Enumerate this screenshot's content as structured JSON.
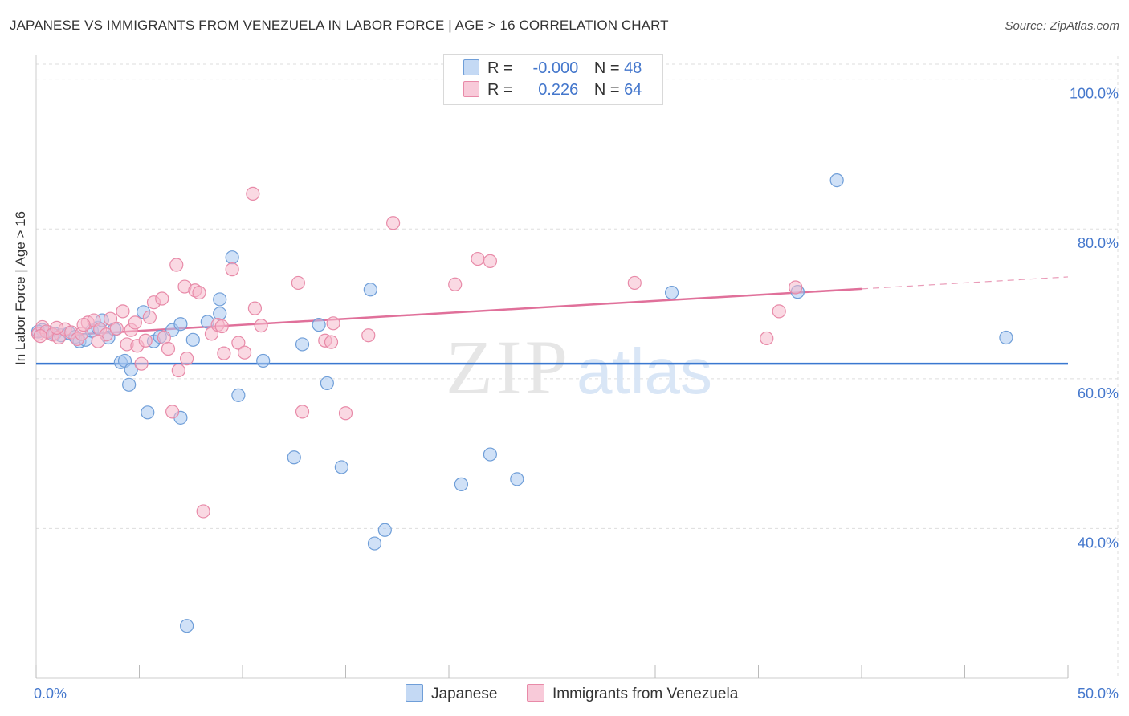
{
  "title": "JAPANESE VS IMMIGRANTS FROM VENEZUELA IN LABOR FORCE | AGE > 16 CORRELATION CHART",
  "source": "Source: ZipAtlas.com",
  "legend": {
    "row1": {
      "r_label": "R =",
      "r_value": "-0.000",
      "n_label": "N =",
      "n_value": "48"
    },
    "row2": {
      "r_label": "R =",
      "r_value": "0.226",
      "n_label": "N =",
      "n_value": "64"
    }
  },
  "series_labels": {
    "japanese": "Japanese",
    "venezuela": "Immigrants from Venezuela"
  },
  "colors": {
    "blue_fill": "#aac8f0",
    "blue_stroke": "#6f9ed8",
    "blue_line": "#3a78d0",
    "pink_fill": "#f6b9cc",
    "pink_stroke": "#e88aa8",
    "pink_line": "#e0709a",
    "axis_text": "#4477cc",
    "grid": "#dddddd"
  },
  "watermark": {
    "zip": "ZIP",
    "atlas": "atlas"
  },
  "chart_data": {
    "type": "scatter",
    "title": "JAPANESE VS IMMIGRANTS FROM VENEZUELA IN LABOR FORCE | AGE > 16 CORRELATION CHART",
    "xlabel": "",
    "ylabel": "In Labor Force | Age > 16",
    "xlim": [
      0,
      50
    ],
    "ylim": [
      20,
      102
    ],
    "x_tick_labels": [
      {
        "value": 0,
        "label": "0.0%"
      },
      {
        "value": 50,
        "label": "50.0%"
      }
    ],
    "y_tick_labels": [
      {
        "value": 100,
        "label": "100.0%"
      },
      {
        "value": 80,
        "label": "80.0%"
      },
      {
        "value": 60,
        "label": "60.0%"
      },
      {
        "value": 40,
        "label": "40.0%"
      }
    ],
    "x_minor_ticks": [
      0,
      5,
      10,
      15,
      20,
      25,
      30,
      35,
      40,
      45,
      50
    ],
    "series": [
      {
        "name": "Japanese",
        "color": "#aac8f0",
        "trend": {
          "x": [
            0,
            50
          ],
          "y": [
            62.0,
            62.0
          ]
        },
        "points": [
          [
            0.3,
            66.5
          ],
          [
            0.6,
            66.2
          ],
          [
            0.9,
            66.0
          ],
          [
            1.2,
            65.8
          ],
          [
            1.6,
            66.1
          ],
          [
            1.9,
            65.6
          ],
          [
            2.1,
            65.0
          ],
          [
            2.4,
            65.2
          ],
          [
            2.7,
            66.4
          ],
          [
            3.0,
            66.8
          ],
          [
            3.2,
            67.8
          ],
          [
            3.5,
            65.5
          ],
          [
            3.8,
            66.6
          ],
          [
            4.1,
            62.2
          ],
          [
            4.3,
            62.4
          ],
          [
            4.6,
            61.2
          ],
          [
            4.5,
            59.2
          ],
          [
            5.2,
            68.9
          ],
          [
            5.4,
            55.5
          ],
          [
            5.7,
            65.0
          ],
          [
            6.0,
            65.6
          ],
          [
            6.6,
            66.5
          ],
          [
            7.0,
            67.3
          ],
          [
            7.0,
            54.8
          ],
          [
            7.6,
            65.2
          ],
          [
            8.3,
            67.6
          ],
          [
            8.9,
            68.7
          ],
          [
            8.9,
            70.6
          ],
          [
            9.5,
            76.2
          ],
          [
            9.8,
            57.8
          ],
          [
            11.0,
            62.4
          ],
          [
            12.5,
            49.5
          ],
          [
            12.9,
            64.6
          ],
          [
            13.7,
            67.2
          ],
          [
            14.1,
            59.4
          ],
          [
            14.8,
            48.2
          ],
          [
            16.2,
            71.9
          ],
          [
            16.4,
            38.0
          ],
          [
            16.9,
            39.8
          ],
          [
            20.6,
            45.9
          ],
          [
            22.0,
            49.9
          ],
          [
            23.3,
            46.6
          ],
          [
            7.3,
            27.0
          ],
          [
            30.8,
            71.5
          ],
          [
            36.9,
            71.6
          ],
          [
            38.8,
            86.5
          ],
          [
            47.0,
            65.5
          ],
          [
            0.1,
            66.3
          ]
        ]
      },
      {
        "name": "Immigrants from Venezuela",
        "color": "#f6b9cc",
        "trend": {
          "x": [
            0,
            40
          ],
          "y": [
            65.6,
            72.0
          ],
          "dashed_to": [
            50,
            73.6
          ]
        },
        "points": [
          [
            0.1,
            66.0
          ],
          [
            0.3,
            66.9
          ],
          [
            0.5,
            66.3
          ],
          [
            0.8,
            65.9
          ],
          [
            1.1,
            65.5
          ],
          [
            1.4,
            66.6
          ],
          [
            1.7,
            66.2
          ],
          [
            2.0,
            65.3
          ],
          [
            2.2,
            66.0
          ],
          [
            2.5,
            67.5
          ],
          [
            2.8,
            67.8
          ],
          [
            3.1,
            66.6
          ],
          [
            3.4,
            65.9
          ],
          [
            3.6,
            68.0
          ],
          [
            3.9,
            66.7
          ],
          [
            4.2,
            69.0
          ],
          [
            4.4,
            64.6
          ],
          [
            4.6,
            66.5
          ],
          [
            4.9,
            64.4
          ],
          [
            5.1,
            62.0
          ],
          [
            5.3,
            65.1
          ],
          [
            5.5,
            68.2
          ],
          [
            5.7,
            70.2
          ],
          [
            6.1,
            70.7
          ],
          [
            6.2,
            65.5
          ],
          [
            6.4,
            64.0
          ],
          [
            6.6,
            55.6
          ],
          [
            6.8,
            75.2
          ],
          [
            6.9,
            61.1
          ],
          [
            7.2,
            72.3
          ],
          [
            7.3,
            62.7
          ],
          [
            7.7,
            71.8
          ],
          [
            7.9,
            71.5
          ],
          [
            8.1,
            42.3
          ],
          [
            8.5,
            66.0
          ],
          [
            8.8,
            67.2
          ],
          [
            9.1,
            63.4
          ],
          [
            9.5,
            74.6
          ],
          [
            9.8,
            64.8
          ],
          [
            10.1,
            63.5
          ],
          [
            10.6,
            69.4
          ],
          [
            10.9,
            67.1
          ],
          [
            10.5,
            84.7
          ],
          [
            12.7,
            72.8
          ],
          [
            12.9,
            55.6
          ],
          [
            14.0,
            65.1
          ],
          [
            14.3,
            64.9
          ],
          [
            14.4,
            67.4
          ],
          [
            15.0,
            55.4
          ],
          [
            16.1,
            65.8
          ],
          [
            17.3,
            80.8
          ],
          [
            20.3,
            72.6
          ],
          [
            21.4,
            76.0
          ],
          [
            22.0,
            75.7
          ],
          [
            29.0,
            72.8
          ],
          [
            35.4,
            65.4
          ],
          [
            36.0,
            69.0
          ],
          [
            36.8,
            72.2
          ],
          [
            0.2,
            65.7
          ],
          [
            1.0,
            66.8
          ],
          [
            3.0,
            65.0
          ],
          [
            4.8,
            67.5
          ],
          [
            9.0,
            67.0
          ],
          [
            2.3,
            67.2
          ]
        ]
      }
    ]
  }
}
